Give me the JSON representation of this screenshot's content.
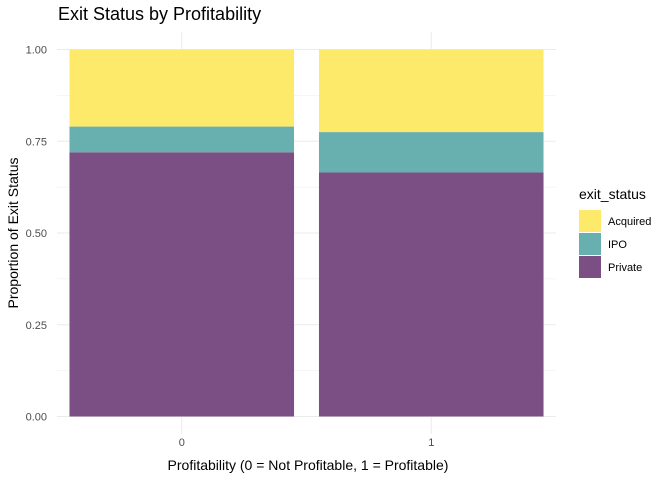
{
  "chart_data": {
    "type": "bar",
    "stacked": true,
    "title": "Exit Status by Profitability",
    "xlabel": "Profitability (0 = Not Profitable, 1 = Profitable)",
    "ylabel": "Proportion of Exit Status",
    "categories": [
      "0",
      "1"
    ],
    "ylim": [
      0,
      1
    ],
    "yticks": [
      "0.00",
      "0.25",
      "0.50",
      "0.75",
      "1.00"
    ],
    "grid": true,
    "legend": {
      "title": "exit_status",
      "position": "right"
    },
    "series": [
      {
        "name": "Private",
        "values": [
          0.72,
          0.665
        ],
        "color": "#7B4F84"
      },
      {
        "name": "IPO",
        "values": [
          0.07,
          0.11
        ],
        "color": "#68B0AF"
      },
      {
        "name": "Acquired",
        "values": [
          0.21,
          0.225
        ],
        "color": "#FDEA6A"
      }
    ]
  }
}
